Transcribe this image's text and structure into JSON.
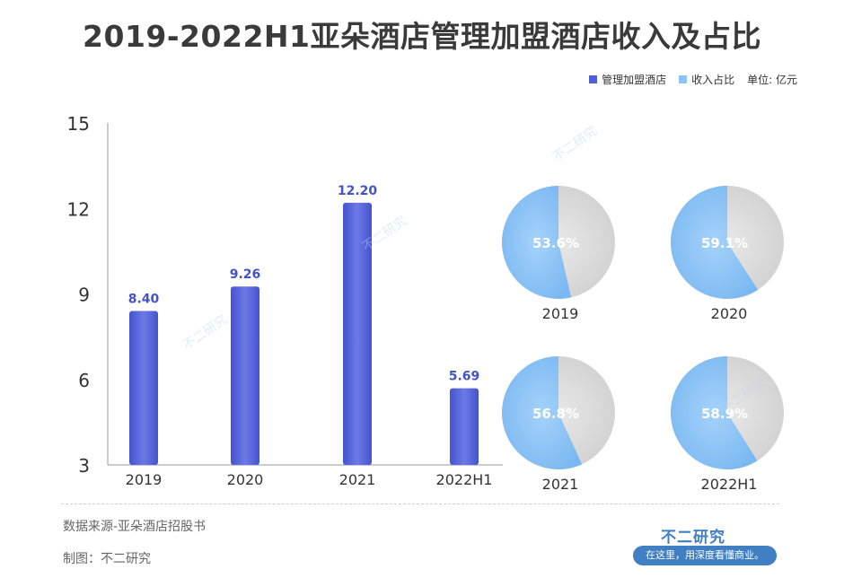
{
  "title": "2019-2022H1亚朵酒店管理加盟酒店收入及占比",
  "legend": {
    "series1": "管理加盟酒店",
    "series2": "收入占比",
    "unit": "单位: 亿元"
  },
  "colors": {
    "bar": "#4f5fd6",
    "pie_share": "#8cc4f5",
    "pie_rest": "#d8d8d8"
  },
  "chart_data": [
    {
      "type": "bar",
      "categories": [
        "2019",
        "2020",
        "2021",
        "2022H1"
      ],
      "values": [
        8.4,
        9.26,
        12.2,
        5.69
      ],
      "value_labels": [
        "8.40",
        "9.26",
        "12.20",
        "5.69"
      ],
      "ylim": [
        3,
        15
      ],
      "yticks": [
        "3",
        "6",
        "9",
        "12",
        "15"
      ],
      "series": [
        {
          "name": "管理加盟酒店",
          "values": [
            8.4,
            9.26,
            12.2,
            5.69
          ]
        }
      ]
    },
    {
      "type": "pie",
      "series_name": "收入占比",
      "pies": [
        {
          "category": "2019",
          "share": 53.6,
          "label": "53.6%"
        },
        {
          "category": "2020",
          "share": 59.1,
          "label": "59.1%"
        },
        {
          "category": "2021",
          "share": 56.8,
          "label": "56.8%"
        },
        {
          "category": "2022H1",
          "share": 58.9,
          "label": "58.9%"
        }
      ]
    }
  ],
  "footer": {
    "source": "数据来源-亚朵酒店招股书",
    "maker": "制图：不二研究",
    "brand": "不二研究",
    "brand_tagline": "在这里，用深度看懂商业。",
    "watermark": "不二研究"
  }
}
